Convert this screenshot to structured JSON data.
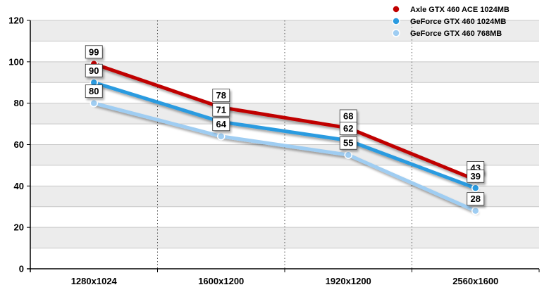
{
  "chart_data": {
    "type": "line",
    "categories": [
      "1280x1024",
      "1600x1200",
      "1920x1200",
      "2560x1600"
    ],
    "ylim": [
      0,
      120
    ],
    "yticks": [
      0,
      20,
      40,
      60,
      80,
      100,
      120
    ],
    "grid": true,
    "legend_position": "top-right",
    "series": [
      {
        "name": "Axle GTX 460 ACE 1024MB",
        "values": [
          99,
          78,
          68,
          43
        ],
        "color": "#c00000"
      },
      {
        "name": "GeForce GTX 460 1024MB",
        "values": [
          90,
          71,
          62,
          39
        ],
        "color": "#2b9be0"
      },
      {
        "name": "GeForce GTX 460 768MB",
        "values": [
          80,
          64,
          55,
          28
        ],
        "color": "#9fcdf2"
      }
    ]
  }
}
